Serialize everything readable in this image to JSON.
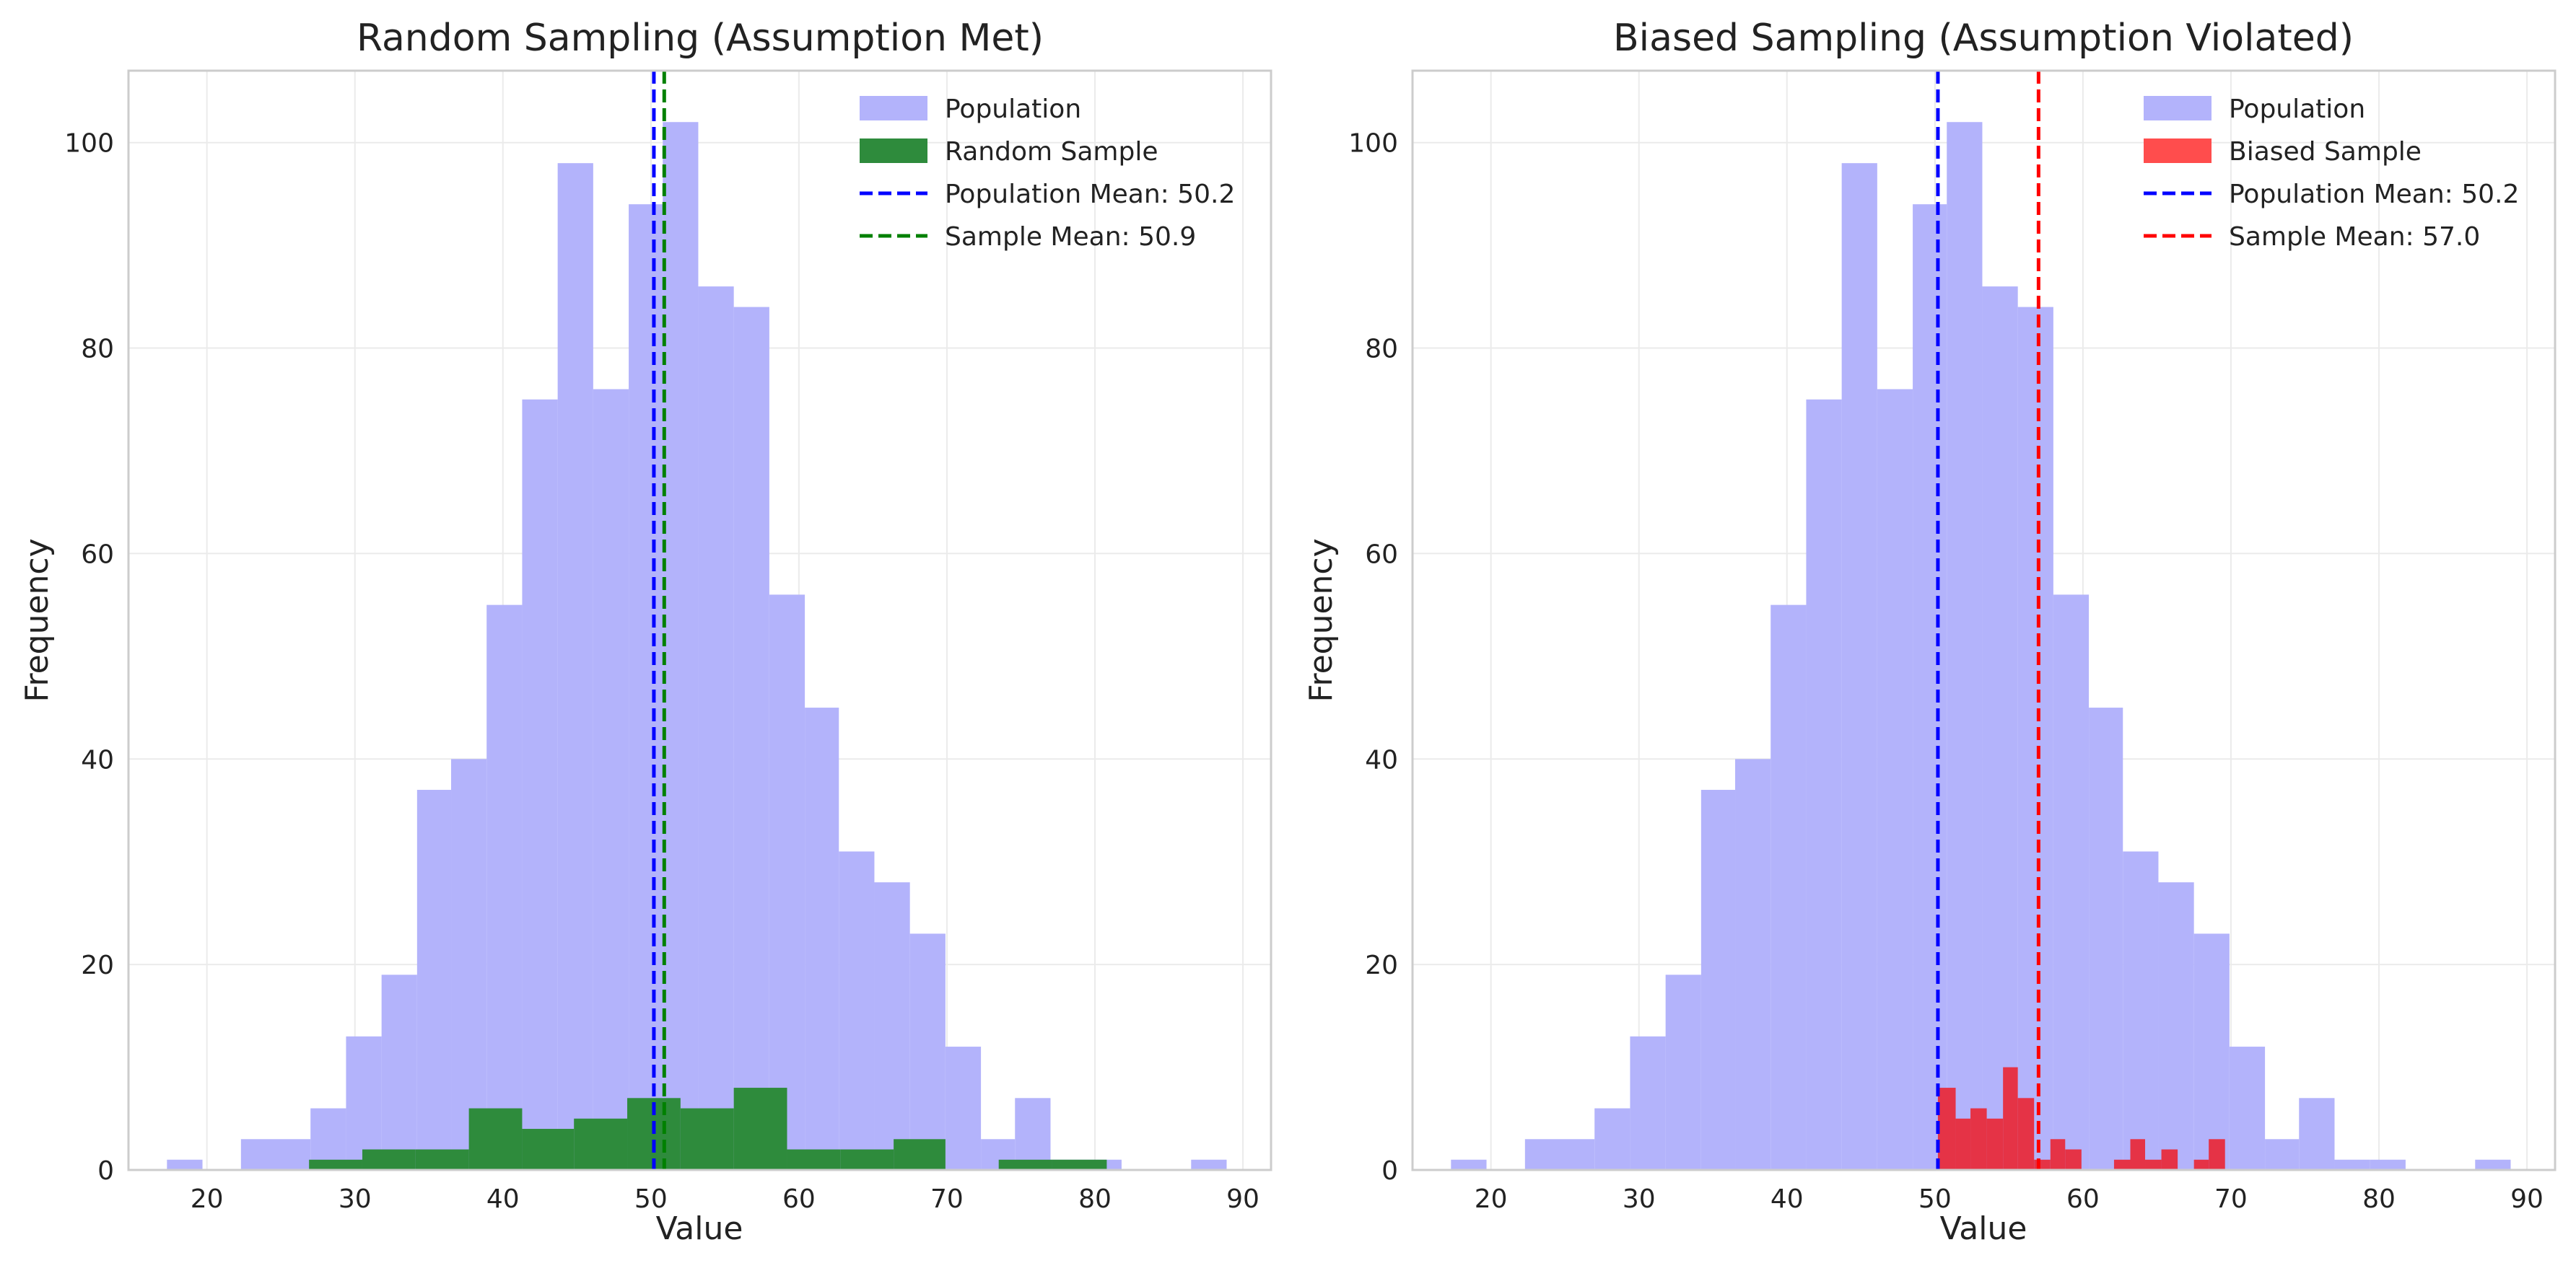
{
  "chart_data": [
    {
      "type": "histogram",
      "title": "Random Sampling (Assumption Met)",
      "xlabel": "Value",
      "ylabel": "Frequency",
      "xlim": [
        14.7,
        91.9
      ],
      "ylim": [
        0,
        107
      ],
      "xticks": [
        20,
        30,
        40,
        50,
        60,
        70,
        80,
        90
      ],
      "yticks": [
        0,
        20,
        40,
        60,
        80,
        100
      ],
      "grid": true,
      "legend_position": "top-right",
      "series": [
        {
          "name": "Population",
          "kind": "bars",
          "color": "#b3b3fb",
          "bins": [
            [
              17.3,
              19.7,
              1
            ],
            [
              22.3,
              24.6,
              3
            ],
            [
              24.6,
              27.0,
              3
            ],
            [
              27.0,
              29.4,
              6
            ],
            [
              29.4,
              31.8,
              13
            ],
            [
              31.8,
              34.2,
              19
            ],
            [
              34.2,
              36.5,
              37
            ],
            [
              36.5,
              38.9,
              40
            ],
            [
              38.9,
              41.3,
              55
            ],
            [
              41.3,
              43.7,
              75
            ],
            [
              43.7,
              46.1,
              98
            ],
            [
              46.1,
              48.5,
              76
            ],
            [
              48.5,
              50.8,
              94
            ],
            [
              50.8,
              53.2,
              102
            ],
            [
              53.2,
              55.6,
              86
            ],
            [
              55.6,
              58.0,
              84
            ],
            [
              58.0,
              60.4,
              56
            ],
            [
              60.4,
              62.7,
              45
            ],
            [
              62.7,
              65.1,
              31
            ],
            [
              65.1,
              67.5,
              28
            ],
            [
              67.5,
              69.9,
              23
            ],
            [
              69.9,
              72.3,
              12
            ],
            [
              72.3,
              74.6,
              3
            ],
            [
              74.6,
              77.0,
              7
            ],
            [
              77.0,
              79.4,
              1
            ],
            [
              79.4,
              81.8,
              1
            ],
            [
              86.5,
              88.9,
              1
            ]
          ]
        },
        {
          "name": "Random Sample",
          "kind": "bars",
          "color": "#2e8b3c",
          "bins": [
            [
              26.9,
              30.5,
              1
            ],
            [
              30.5,
              34.1,
              2
            ],
            [
              34.1,
              37.7,
              2
            ],
            [
              37.7,
              41.3,
              6
            ],
            [
              41.3,
              44.8,
              4
            ],
            [
              44.8,
              48.4,
              5
            ],
            [
              48.4,
              52.0,
              7
            ],
            [
              52.0,
              55.6,
              6
            ],
            [
              55.6,
              59.2,
              8
            ],
            [
              59.2,
              62.8,
              2
            ],
            [
              62.8,
              66.4,
              2
            ],
            [
              66.4,
              69.9,
              3
            ],
            [
              73.5,
              77.1,
              1
            ],
            [
              77.1,
              80.8,
              1
            ]
          ]
        },
        {
          "name": "Population Mean: 50.2",
          "kind": "vline",
          "x": 50.2,
          "color": "#0000ff"
        },
        {
          "name": "Sample Mean: 50.9",
          "kind": "vline",
          "x": 50.9,
          "color": "#008000"
        }
      ]
    },
    {
      "type": "histogram",
      "title": "Biased Sampling (Assumption Violated)",
      "xlabel": "Value",
      "ylabel": "Frequency",
      "xlim": [
        14.7,
        91.9
      ],
      "ylim": [
        0,
        107
      ],
      "xticks": [
        20,
        30,
        40,
        50,
        60,
        70,
        80,
        90
      ],
      "yticks": [
        0,
        20,
        40,
        60,
        80,
        100
      ],
      "grid": true,
      "legend_position": "top-right",
      "series": [
        {
          "name": "Population",
          "kind": "bars",
          "color": "#b3b3fb",
          "bins": [
            [
              17.3,
              19.7,
              1
            ],
            [
              22.3,
              24.6,
              3
            ],
            [
              24.6,
              27.0,
              3
            ],
            [
              27.0,
              29.4,
              6
            ],
            [
              29.4,
              31.8,
              13
            ],
            [
              31.8,
              34.2,
              19
            ],
            [
              34.2,
              36.5,
              37
            ],
            [
              36.5,
              38.9,
              40
            ],
            [
              38.9,
              41.3,
              55
            ],
            [
              41.3,
              43.7,
              75
            ],
            [
              43.7,
              46.1,
              98
            ],
            [
              46.1,
              48.5,
              76
            ],
            [
              48.5,
              50.8,
              94
            ],
            [
              50.8,
              53.2,
              102
            ],
            [
              53.2,
              55.6,
              86
            ],
            [
              55.6,
              58.0,
              84
            ],
            [
              58.0,
              60.4,
              56
            ],
            [
              60.4,
              62.7,
              45
            ],
            [
              62.7,
              65.1,
              31
            ],
            [
              65.1,
              67.5,
              28
            ],
            [
              67.5,
              69.9,
              23
            ],
            [
              69.9,
              72.3,
              12
            ],
            [
              72.3,
              74.6,
              3
            ],
            [
              74.6,
              77.0,
              7
            ],
            [
              77.0,
              79.4,
              1
            ],
            [
              79.4,
              81.8,
              1
            ],
            [
              86.5,
              88.9,
              1
            ]
          ]
        },
        {
          "name": "Biased Sample",
          "kind": "bars",
          "color": "#ff4d4d",
          "overlap_color": "#e53346",
          "bins": [
            [
              50.2,
              51.4,
              8
            ],
            [
              51.4,
              52.4,
              5
            ],
            [
              52.4,
              53.5,
              6
            ],
            [
              53.5,
              54.6,
              5
            ],
            [
              54.6,
              55.6,
              10
            ],
            [
              55.6,
              56.7,
              7
            ],
            [
              56.7,
              57.8,
              1
            ],
            [
              57.8,
              58.8,
              3
            ],
            [
              58.8,
              59.9,
              2
            ],
            [
              62.1,
              63.2,
              1
            ],
            [
              63.2,
              64.2,
              3
            ],
            [
              64.2,
              65.3,
              1
            ],
            [
              65.3,
              66.4,
              2
            ],
            [
              67.5,
              68.5,
              1
            ],
            [
              68.5,
              69.6,
              3
            ]
          ]
        },
        {
          "name": "Population Mean: 50.2",
          "kind": "vline",
          "x": 50.2,
          "color": "#0000ff"
        },
        {
          "name": "Sample Mean: 57.0",
          "kind": "vline",
          "x": 57.0,
          "color": "#ff0000"
        }
      ]
    }
  ]
}
